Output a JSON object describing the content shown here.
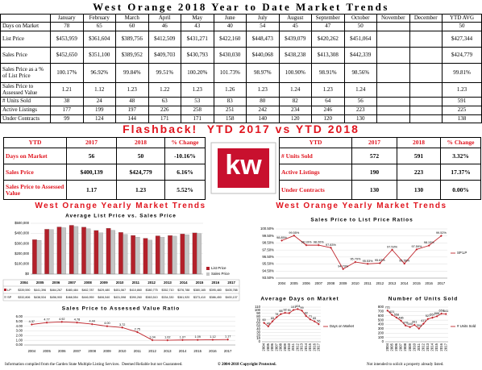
{
  "title": "West Orange 2018 Year to Date Market Trends",
  "table": {
    "columns": [
      "January",
      "February",
      "March",
      "April",
      "May",
      "June",
      "July",
      "August",
      "September",
      "October",
      "November",
      "December",
      "YTD AVG"
    ],
    "rows": [
      {
        "label": "Days on Market",
        "cells": [
          "78",
          "65",
          "60",
          "46",
          "43",
          "40",
          "54",
          "45",
          "47",
          "50",
          null,
          null,
          "50"
        ]
      },
      {
        "label": "List Price",
        "cells": [
          "$453,959",
          "$361,604",
          "$389,756",
          "$412,509",
          "$431,271",
          "$422,160",
          "$448,473",
          "$439,079",
          "$420,262",
          "$451,064",
          null,
          null,
          "$427,344"
        ]
      },
      {
        "label": "Sales Price",
        "cells": [
          "$452,650",
          "$351,100",
          "$389,952",
          "$409,703",
          "$430,793",
          "$430,030",
          "$440,068",
          "$438,238",
          "$413,308",
          "$442,339",
          null,
          null,
          "$424,779"
        ]
      },
      {
        "label": "Sales Price as a % of List Price",
        "cells": [
          "100.17%",
          "96.92%",
          "99.84%",
          "99.51%",
          "100.20%",
          "101.73%",
          "98.97%",
          "100.90%",
          "98.91%",
          "98.56%",
          null,
          null,
          "99.81%"
        ]
      },
      {
        "label": "Sales Price to Assessed Value",
        "cells": [
          "1.21",
          "1.12",
          "1.23",
          "1.22",
          "1.23",
          "1.26",
          "1.23",
          "1.24",
          "1.23",
          "1.24",
          null,
          null,
          "1.23"
        ]
      },
      {
        "label": "# Units Sold",
        "cells": [
          "38",
          "24",
          "48",
          "63",
          "53",
          "83",
          "80",
          "82",
          "64",
          "56",
          null,
          null,
          "591"
        ]
      },
      {
        "label": "Active Listings",
        "cells": [
          "177",
          "199",
          "197",
          "226",
          "258",
          "251",
          "242",
          "234",
          "246",
          "223",
          null,
          null,
          "225"
        ]
      },
      {
        "label": "Under Contracts",
        "cells": [
          "99",
          "124",
          "144",
          "171",
          "171",
          "158",
          "140",
          "120",
          "120",
          "130",
          null,
          null,
          "138"
        ]
      }
    ]
  },
  "flashback_title": "Flashback!  YTD 2017 vs YTD 2018",
  "ytd_left": {
    "header": [
      "YTD",
      "2017",
      "2018",
      "% Change"
    ],
    "rows": [
      [
        "Days on Market",
        "56",
        "50",
        "-10.16%"
      ],
      [
        "Sales Price",
        "$400,139",
        "$424,779",
        "6.16%"
      ],
      [
        "Sales Price to Assessed Value",
        "1.17",
        "1.23",
        "5.52%"
      ]
    ]
  },
  "ytd_right": {
    "header": [
      "YTD",
      "2017",
      "2018",
      "% Change"
    ],
    "rows": [
      [
        "# Units Sold",
        "572",
        "591",
        "3.32%"
      ],
      [
        "Active Listings",
        "190",
        "223",
        "17.37%"
      ],
      [
        "Under Contracts",
        "130",
        "130",
        "0.00%"
      ]
    ]
  },
  "logo": "kw",
  "section_titles": [
    "West Orange Yearly Market Trends",
    "West Orange Yearly Market Trends"
  ],
  "chart_data": [
    {
      "type": "bar",
      "title": "Average List Price vs. Sales Price",
      "categories": [
        "2004",
        "2005",
        "2006",
        "2007",
        "2008",
        "2009",
        "2010",
        "2011",
        "2012",
        "2013",
        "2014",
        "2015",
        "2016",
        "2017"
      ],
      "series": [
        {
          "name": "List Price",
          "table_label": "LP",
          "color": "#b3202a",
          "values": [
            339590,
            441396,
            464267,
            480484,
            462787,
            429480,
            451567,
            410860,
            380775,
            352710,
            376788,
            380165,
            395480,
            405788
          ],
          "value_labels": [
            "$339,590",
            "$441,396",
            "$464,267",
            "$480,484",
            "$462,787",
            "$429,480",
            "$451,567",
            "$410,860",
            "$380,775",
            "$352,710",
            "$376,788",
            "$380,165",
            "$395,480",
            "$405,788"
          ]
        },
        {
          "name": "Sales Price",
          "table_label": "SP",
          "color": "#c4c4c4",
          "values": [
            332806,
            438534,
            456900,
            468554,
            446959,
            406540,
            431598,
            390260,
            363510,
            334330,
            361920,
            373410,
            386450,
            400137
          ],
          "value_labels": [
            "$332,806",
            "$438,534",
            "$456,900",
            "$468,554",
            "$446,959",
            "$406,540",
            "$431,598",
            "$390,260",
            "$363,510",
            "$334,330",
            "$361,920",
            "$373,410",
            "$386,450",
            "$400,137"
          ]
        }
      ],
      "ylim": [
        0,
        500000
      ],
      "yticks": [
        {
          "value": 0,
          "label": "$0"
        },
        {
          "value": 100000,
          "label": "$100,000"
        },
        {
          "value": 200000,
          "label": "$200,000"
        },
        {
          "value": 300000,
          "label": "$300,000"
        },
        {
          "value": 400000,
          "label": "$400,000"
        },
        {
          "value": 500000,
          "label": "$500,000"
        }
      ],
      "grid": true
    },
    {
      "type": "line",
      "title": "Sales Price to List Price Ratios",
      "categories": [
        "2004",
        "2005",
        "2006",
        "2007",
        "2008",
        "2009",
        "2010",
        "2011",
        "2012",
        "2013",
        "2014",
        "2015",
        "2016",
        "2017"
      ],
      "series": [
        {
          "name": "SP:LP",
          "color": "#c0262d",
          "values": [
            98.85,
            99.55,
            98.19,
            98.2,
            97.83,
            94.79,
            95.79,
            95.53,
            95.63,
            97.53,
            95.56,
            97.59,
            98.13,
            99.52
          ],
          "value_labels": [
            "98.85%",
            "99.55%",
            "98.19%",
            "98.20%",
            "97.83%",
            "94.79%",
            "95.79%",
            "95.53%",
            "95.63%",
            "97.53%",
            "95.56%",
            "97.59%",
            "98.13%",
            "99.52%"
          ]
        }
      ],
      "ylim": [
        93.5,
        100.5
      ],
      "yticks": [
        {
          "value": 93.5,
          "label": "93.50%"
        },
        {
          "value": 94.5,
          "label": "94.50%"
        },
        {
          "value": 95.5,
          "label": "95.50%"
        },
        {
          "value": 96.5,
          "label": "96.50%"
        },
        {
          "value": 97.5,
          "label": "97.50%"
        },
        {
          "value": 98.5,
          "label": "98.50%"
        },
        {
          "value": 99.5,
          "label": "99.50%"
        },
        {
          "value": 100.5,
          "label": "100.50%"
        }
      ],
      "grid": true
    },
    {
      "type": "line",
      "title": "Sales Price to Assessed Value Ratio",
      "categories": [
        "2004",
        "2005",
        "2006",
        "2007",
        "2008",
        "2009",
        "2010",
        "2011",
        "2012",
        "2013",
        "2014",
        "2015",
        "2016",
        "2017"
      ],
      "series": [
        {
          "name": "Ratio",
          "color": "#c0262d",
          "values": [
            4.37,
            4.77,
            4.92,
            4.78,
            4.44,
            4,
            3.72,
            2.75,
            1.04,
            1.02,
            1.07,
            1.09,
            1.12,
            1.17
          ],
          "value_labels": [
            "4.37",
            "4.77",
            "4.92",
            "4.78",
            "4.44",
            "4.00",
            "3.72",
            "2.75",
            "1.04",
            "1.02",
            "1.07",
            "1.09",
            "1.12",
            "1.17"
          ]
        }
      ],
      "ylim": [
        0,
        6
      ],
      "yticks": [
        {
          "value": 0,
          "label": "0.00"
        },
        {
          "value": 1,
          "label": "1.00"
        },
        {
          "value": 2,
          "label": "2.00"
        },
        {
          "value": 3,
          "label": "3.00"
        },
        {
          "value": 4,
          "label": "4.00"
        },
        {
          "value": 5,
          "label": "5.00"
        },
        {
          "value": 6,
          "label": "6.00"
        }
      ],
      "grid": true
    },
    {
      "type": "line",
      "title": "Average Days on Market",
      "categories": [
        "2004",
        "2005",
        "2006",
        "2007",
        "2008",
        "2009",
        "2010",
        "2011",
        "2012",
        "2013",
        "2014",
        "2015",
        "2016",
        "2017"
      ],
      "series": [
        {
          "name": "Days on Market",
          "color": "#c0262d",
          "values": [
            60,
            49,
            65,
            78,
            88,
            92,
            91,
            101,
            104,
            99,
            82,
            71,
            65,
            56
          ]
        }
      ],
      "ylim": [
        0,
        110
      ],
      "yticks": [
        0,
        10,
        20,
        30,
        40,
        50,
        60,
        70,
        80,
        90,
        100,
        110
      ],
      "grid": true
    },
    {
      "type": "line",
      "title": "Number of Units Sold",
      "categories": [
        "2004",
        "2005",
        "2006",
        "2007",
        "2008",
        "2009",
        "2010",
        "2011",
        "2012",
        "2013",
        "2014",
        "2015",
        "2016",
        "2017"
      ],
      "series": [
        {
          "name": "# Units Sold",
          "color": "#c0262d",
          "values": [
            721,
            621,
            558,
            486,
            376,
            340,
            391,
            304,
            417,
            527,
            557,
            588,
            650,
            641
          ]
        }
      ],
      "ylim": [
        0,
        800
      ],
      "yticks": [
        0,
        100,
        200,
        300,
        400,
        500,
        600,
        700,
        800
      ],
      "grid": true
    }
  ],
  "footer": [
    "Information compiled from the Garden State Multiple Listing Services.  Deemed Reliable but not Guaranteed.",
    "© 2004-2018 Copyright Protected.",
    "Not intended to solicit a property already listed."
  ]
}
